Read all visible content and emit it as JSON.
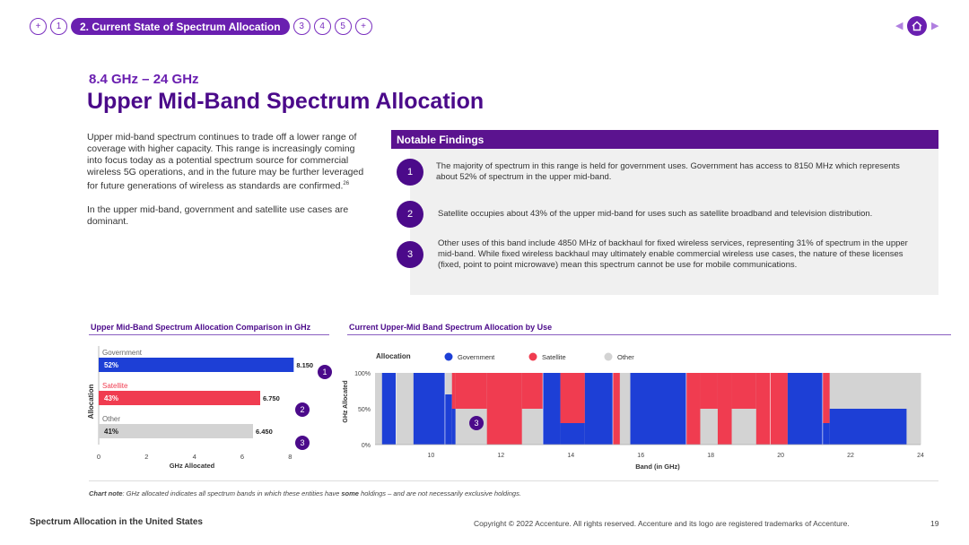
{
  "nav": {
    "prev_symbol": "+",
    "items": [
      "1",
      "2. Current State of Spectrum Allocation",
      "3",
      "4",
      "5"
    ],
    "next_symbol": "+"
  },
  "subtitle": "8.4 GHz – 24 GHz",
  "title": "Upper Mid-Band Spectrum Allocation",
  "intro": {
    "p1": "Upper mid-band spectrum continues to trade off a lower range of coverage with higher capacity. This range is increasingly coming into focus today as a potential spectrum source for commercial wireless 5G operations, and in the future may be further leveraged for future generations of wireless as standards are confirmed.",
    "p1_sup": "26",
    "p2": "In the upper mid-band, government and satellite use cases are dominant."
  },
  "findings": {
    "heading": "Notable Findings",
    "items": [
      {
        "num": "1",
        "text": "The majority of spectrum in this range is held for government uses. Government has access to 8150 MHz which represents about 52% of spectrum in the upper mid-band."
      },
      {
        "num": "2",
        "text": "Satellite occupies about 43% of the upper mid-band for uses such as satellite broadband and television distribution."
      },
      {
        "num": "3",
        "text": "Other uses of this band include 4850 MHz of backhaul for fixed wireless services, representing 31% of spectrum in the upper mid-band. While fixed wireless backhaul may ultimately enable commercial wireless use cases, the nature of these licenses (fixed, point to point microwave) mean this spectrum cannot be use for mobile communications."
      }
    ]
  },
  "colors": {
    "government": "#1d3fd6",
    "satellite": "#f03c50",
    "other": "#d3d3d3",
    "brand": "#4b0a8a"
  },
  "chart_data": [
    {
      "type": "bar",
      "title": "Upper Mid-Band Spectrum Allocation Comparison in GHz",
      "xlabel": "GHz Allocated",
      "ylabel": "Allocation",
      "xlim": [
        0,
        9
      ],
      "xticks": [
        "0",
        "2",
        "4",
        "6",
        "8"
      ],
      "categories": [
        "Government",
        "Satellite",
        "Other"
      ],
      "values": [
        8.15,
        6.75,
        6.45
      ],
      "value_labels": [
        "8.150",
        "6.750",
        "6.450"
      ],
      "percent_labels": [
        "52%",
        "43%",
        "41%"
      ],
      "markers": [
        "1",
        "2",
        "3"
      ]
    },
    {
      "type": "area",
      "title": "Current Upper-Mid Band Spectrum Allocation by Use",
      "legend_title": "Allocation",
      "legend": [
        "Government",
        "Satellite",
        "Other"
      ],
      "xlabel": "Band (in GHz)",
      "ylabel": "GHz Allocated",
      "xlim": [
        8.4,
        24
      ],
      "xticks": [
        "10",
        "12",
        "14",
        "16",
        "18",
        "20",
        "22",
        "24"
      ],
      "yticks": [
        "0%",
        "50%",
        "100%"
      ],
      "marker": "3",
      "segments": [
        {
          "x0": 8.4,
          "x1": 8.6,
          "gov": 0,
          "sat": 0
        },
        {
          "x0": 8.6,
          "x1": 9.0,
          "gov": 1,
          "sat": 0
        },
        {
          "x0": 9.0,
          "x1": 9.5,
          "gov": 0,
          "sat": 0
        },
        {
          "x0": 9.5,
          "x1": 10.4,
          "gov": 1,
          "sat": 0
        },
        {
          "x0": 10.4,
          "x1": 10.6,
          "gov": 0.7,
          "sat": 0
        },
        {
          "x0": 10.6,
          "x1": 10.7,
          "gov": 0.5,
          "sat": 0.5
        },
        {
          "x0": 10.7,
          "x1": 11.6,
          "gov": 0,
          "sat": 0.5
        },
        {
          "x0": 11.6,
          "x1": 12.6,
          "gov": 0,
          "sat": 1
        },
        {
          "x0": 12.6,
          "x1": 13.2,
          "gov": 0,
          "sat": 0.5
        },
        {
          "x0": 13.2,
          "x1": 13.7,
          "gov": 1,
          "sat": 0
        },
        {
          "x0": 13.7,
          "x1": 14.4,
          "gov": 0.3,
          "sat": 0.7
        },
        {
          "x0": 14.4,
          "x1": 15.2,
          "gov": 1,
          "sat": 0
        },
        {
          "x0": 15.2,
          "x1": 15.4,
          "gov": 0,
          "sat": 1
        },
        {
          "x0": 15.4,
          "x1": 15.7,
          "gov": 0,
          "sat": 0
        },
        {
          "x0": 15.7,
          "x1": 17.3,
          "gov": 1,
          "sat": 0
        },
        {
          "x0": 17.3,
          "x1": 17.7,
          "gov": 0,
          "sat": 1
        },
        {
          "x0": 17.7,
          "x1": 18.2,
          "gov": 0,
          "sat": 0.5
        },
        {
          "x0": 18.2,
          "x1": 18.6,
          "gov": 0,
          "sat": 1
        },
        {
          "x0": 18.6,
          "x1": 19.3,
          "gov": 0,
          "sat": 0.5
        },
        {
          "x0": 19.3,
          "x1": 19.7,
          "gov": 0,
          "sat": 1
        },
        {
          "x0": 19.7,
          "x1": 20.2,
          "gov": 0,
          "sat": 1
        },
        {
          "x0": 20.2,
          "x1": 21.2,
          "gov": 1,
          "sat": 0
        },
        {
          "x0": 21.2,
          "x1": 21.4,
          "gov": 0.3,
          "sat": 0.7
        },
        {
          "x0": 21.4,
          "x1": 23.6,
          "gov": 0.5,
          "sat": 0
        },
        {
          "x0": 23.6,
          "x1": 24.0,
          "gov": 0,
          "sat": 0
        }
      ]
    }
  ],
  "chart_note": {
    "label": "Chart note",
    "text_before": ": GHz allocated indicates all spectrum bands in which these entities have ",
    "bold": "some",
    "text_after": " holdings – and are not necessarily exclusive holdings."
  },
  "footer": {
    "left": "Spectrum Allocation in the United States",
    "right": "Copyright © 2022 Accenture. All rights reserved. Accenture and its logo are registered trademarks of Accenture.",
    "page": "19"
  }
}
